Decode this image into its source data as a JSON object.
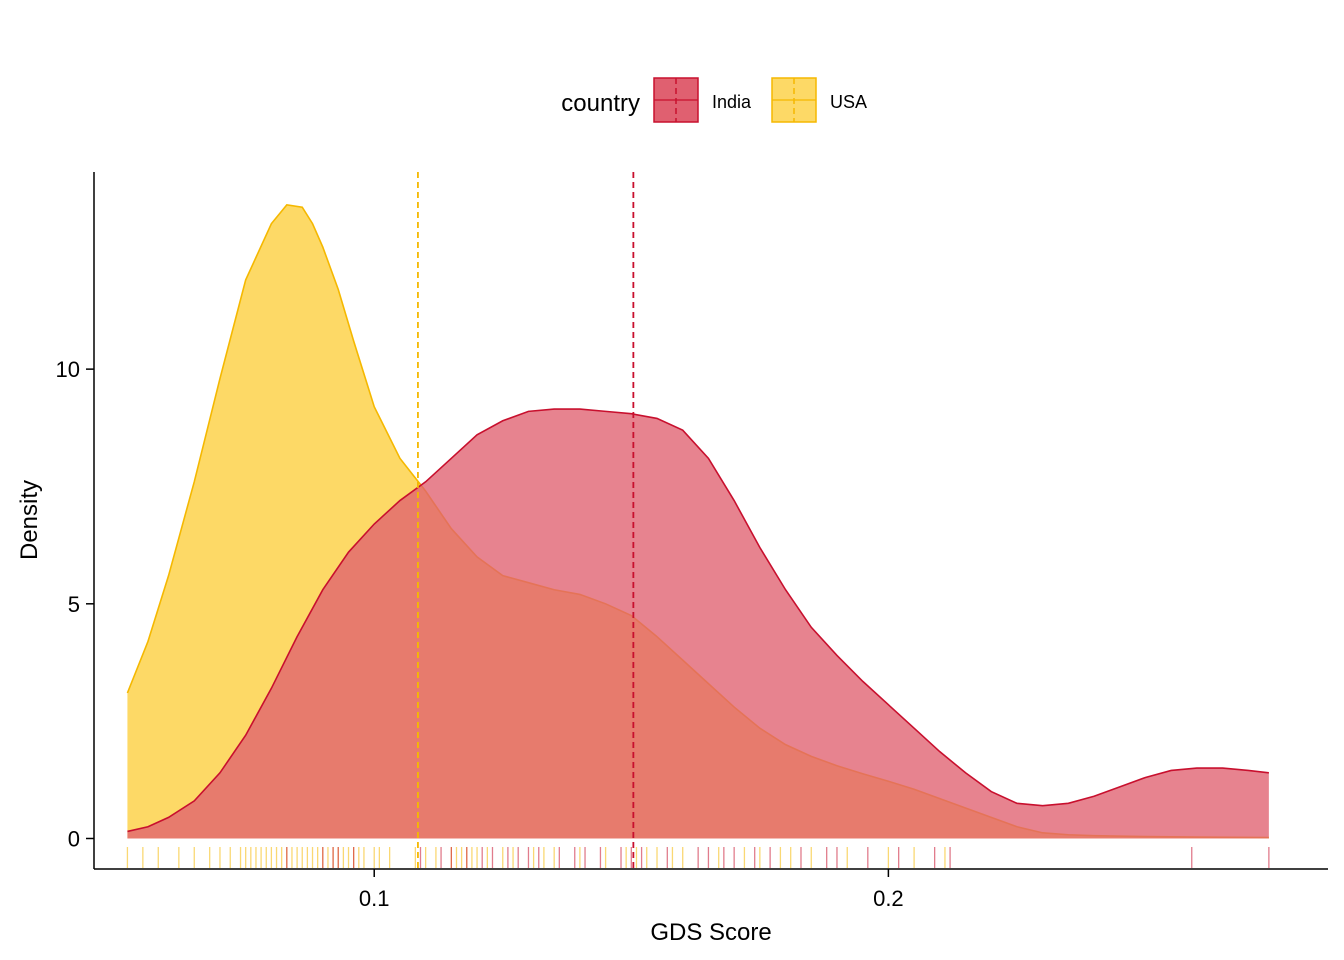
{
  "chart_data": {
    "type": "density",
    "title": "",
    "xlabel": "GDS Score",
    "ylabel": "Density",
    "xlim": [
      0.0455,
      0.2855
    ],
    "ylim": [
      -0.65,
      14.2
    ],
    "x_ticks": [
      0.1,
      0.2
    ],
    "x_tick_labels": [
      "0.1",
      "0.2"
    ],
    "y_ticks": [
      0,
      5,
      10
    ],
    "y_tick_labels": [
      "0",
      "5",
      "10"
    ],
    "grid": false,
    "legend": {
      "title": "country",
      "position": "top",
      "entries": [
        "India",
        "USA"
      ]
    },
    "series": [
      {
        "name": "India",
        "color": "#C8102E",
        "fill": "#E06070",
        "mean": 0.1504,
        "x": [
          0.052,
          0.056,
          0.06,
          0.065,
          0.07,
          0.075,
          0.08,
          0.085,
          0.09,
          0.095,
          0.1,
          0.105,
          0.11,
          0.115,
          0.12,
          0.125,
          0.13,
          0.135,
          0.14,
          0.145,
          0.15,
          0.155,
          0.16,
          0.165,
          0.17,
          0.175,
          0.18,
          0.185,
          0.19,
          0.195,
          0.2,
          0.205,
          0.21,
          0.215,
          0.22,
          0.225,
          0.23,
          0.235,
          0.24,
          0.245,
          0.25,
          0.255,
          0.26,
          0.265,
          0.27,
          0.274
        ],
        "y": [
          0.15,
          0.25,
          0.45,
          0.8,
          1.4,
          2.2,
          3.2,
          4.3,
          5.3,
          6.1,
          6.7,
          7.2,
          7.6,
          8.1,
          8.6,
          8.9,
          9.1,
          9.15,
          9.15,
          9.1,
          9.05,
          8.95,
          8.7,
          8.1,
          7.2,
          6.2,
          5.3,
          4.5,
          3.9,
          3.35,
          2.85,
          2.35,
          1.85,
          1.4,
          1.0,
          0.75,
          0.7,
          0.75,
          0.9,
          1.1,
          1.3,
          1.45,
          1.5,
          1.5,
          1.45,
          1.4
        ]
      },
      {
        "name": "USA",
        "color": "#F5B800",
        "fill": "#FDD966",
        "mean": 0.1085,
        "x": [
          0.052,
          0.056,
          0.06,
          0.065,
          0.07,
          0.075,
          0.08,
          0.083,
          0.086,
          0.088,
          0.09,
          0.093,
          0.096,
          0.1,
          0.105,
          0.11,
          0.115,
          0.12,
          0.125,
          0.13,
          0.135,
          0.14,
          0.145,
          0.15,
          0.155,
          0.16,
          0.165,
          0.17,
          0.175,
          0.18,
          0.185,
          0.19,
          0.195,
          0.2,
          0.205,
          0.21,
          0.215,
          0.22,
          0.225,
          0.23,
          0.235,
          0.24,
          0.25,
          0.26,
          0.274
        ],
        "y": [
          3.1,
          4.2,
          5.6,
          7.6,
          9.8,
          11.9,
          13.1,
          13.5,
          13.45,
          13.1,
          12.6,
          11.7,
          10.6,
          9.2,
          8.1,
          7.4,
          6.6,
          6.0,
          5.6,
          5.45,
          5.3,
          5.2,
          5.0,
          4.75,
          4.3,
          3.8,
          3.3,
          2.8,
          2.35,
          2.0,
          1.75,
          1.55,
          1.38,
          1.22,
          1.05,
          0.85,
          0.65,
          0.45,
          0.25,
          0.12,
          0.08,
          0.06,
          0.04,
          0.03,
          0.02
        ]
      }
    ],
    "rugs": [
      {
        "name": "USA",
        "color": "#F5B800",
        "values": [
          0.052,
          0.055,
          0.058,
          0.062,
          0.065,
          0.068,
          0.07,
          0.072,
          0.074,
          0.075,
          0.076,
          0.077,
          0.078,
          0.079,
          0.08,
          0.081,
          0.082,
          0.083,
          0.084,
          0.085,
          0.086,
          0.087,
          0.088,
          0.089,
          0.09,
          0.091,
          0.092,
          0.093,
          0.094,
          0.095,
          0.096,
          0.097,
          0.098,
          0.1,
          0.101,
          0.103,
          0.108,
          0.11,
          0.112,
          0.115,
          0.116,
          0.117,
          0.118,
          0.119,
          0.12,
          0.122,
          0.125,
          0.127,
          0.131,
          0.133,
          0.135,
          0.14,
          0.145,
          0.149,
          0.151,
          0.153,
          0.155,
          0.158,
          0.16,
          0.167,
          0.172,
          0.175,
          0.179,
          0.181,
          0.185,
          0.192,
          0.2,
          0.205,
          0.211
        ]
      },
      {
        "name": "India",
        "color": "#C8102E",
        "values": [
          0.083,
          0.09,
          0.092,
          0.093,
          0.096,
          0.109,
          0.113,
          0.115,
          0.118,
          0.121,
          0.123,
          0.126,
          0.128,
          0.13,
          0.132,
          0.136,
          0.139,
          0.141,
          0.144,
          0.148,
          0.15,
          0.152,
          0.157,
          0.163,
          0.165,
          0.168,
          0.17,
          0.174,
          0.177,
          0.183,
          0.188,
          0.19,
          0.196,
          0.202,
          0.209,
          0.212,
          0.259,
          0.274
        ]
      }
    ]
  }
}
